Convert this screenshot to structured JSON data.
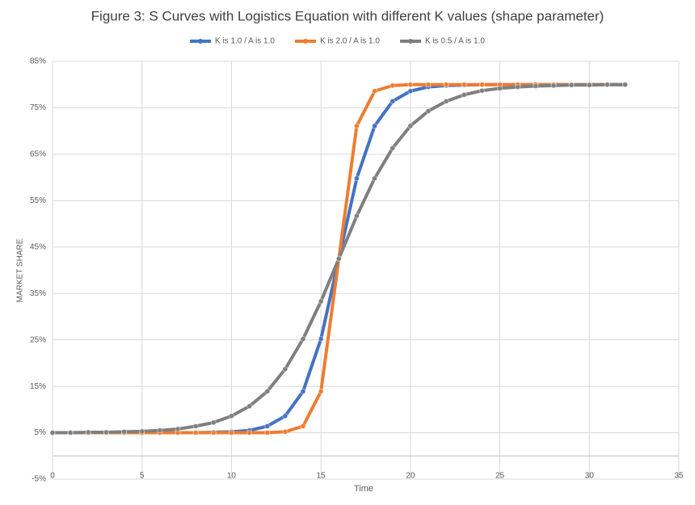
{
  "chart_data": {
    "type": "line",
    "title": "Figure 3: S Curves with Logistics Equation with different K values (shape parameter)",
    "x_label": "Time",
    "y_label": "MARKET SHARE",
    "x": [
      0,
      1,
      2,
      3,
      4,
      5,
      6,
      7,
      8,
      9,
      10,
      11,
      12,
      13,
      14,
      15,
      16,
      17,
      18,
      19,
      20,
      21,
      22,
      23,
      24,
      25,
      26,
      27,
      28,
      29,
      30,
      31,
      32
    ],
    "series": [
      {
        "name": "K is 1.0 / A is 1.0",
        "color": "#4472c4",
        "values": [
          5.0,
          5.0,
          5.0,
          5.0,
          5.0,
          5.0,
          5.0,
          5.0,
          5.0,
          5.1,
          5.2,
          5.5,
          6.4,
          8.6,
          13.9,
          25.2,
          42.5,
          59.8,
          71.1,
          76.4,
          78.6,
          79.5,
          79.8,
          79.9,
          80.0,
          80.0,
          80.0,
          80.0,
          80.0,
          80.0,
          80.0,
          80.0,
          80.0
        ]
      },
      {
        "name": "K is 2.0 / A is 1.0",
        "color": "#ed7d31",
        "values": [
          5.0,
          5.0,
          5.0,
          5.0,
          5.0,
          5.0,
          5.0,
          5.0,
          5.0,
          5.0,
          5.0,
          5.0,
          5.0,
          5.2,
          6.4,
          13.9,
          42.5,
          71.1,
          78.6,
          79.8,
          80.0,
          80.0,
          80.0,
          80.0,
          80.0,
          80.0,
          80.0,
          80.0,
          80.0,
          80.0,
          80.0,
          80.0,
          80.0
        ]
      },
      {
        "name": "K is 0.5 / A is 1.0",
        "color": "#7f7f7f",
        "values": [
          5.0,
          5.0,
          5.1,
          5.1,
          5.2,
          5.3,
          5.5,
          5.8,
          6.4,
          7.2,
          8.6,
          10.7,
          13.9,
          18.7,
          25.2,
          33.3,
          42.5,
          51.7,
          59.8,
          66.3,
          71.1,
          74.3,
          76.4,
          77.8,
          78.7,
          79.2,
          79.5,
          79.7,
          79.8,
          79.9,
          79.9,
          80.0,
          80.0
        ]
      }
    ],
    "xlim": [
      0,
      35
    ],
    "xticks": [
      0,
      5,
      10,
      15,
      20,
      25,
      30,
      35
    ],
    "ylim": [
      -5,
      85
    ],
    "yticks": [
      {
        "value": -5,
        "label": "-5%"
      },
      {
        "value": 5,
        "label": "5%"
      },
      {
        "value": 15,
        "label": "15%"
      },
      {
        "value": 25,
        "label": "25%"
      },
      {
        "value": 35,
        "label": "35%"
      },
      {
        "value": 45,
        "label": "45%"
      },
      {
        "value": 55,
        "label": "55%"
      },
      {
        "value": 65,
        "label": "65%"
      },
      {
        "value": 75,
        "label": "75%"
      },
      {
        "value": 85,
        "label": "85%"
      }
    ],
    "grid": true,
    "legend": "top"
  }
}
